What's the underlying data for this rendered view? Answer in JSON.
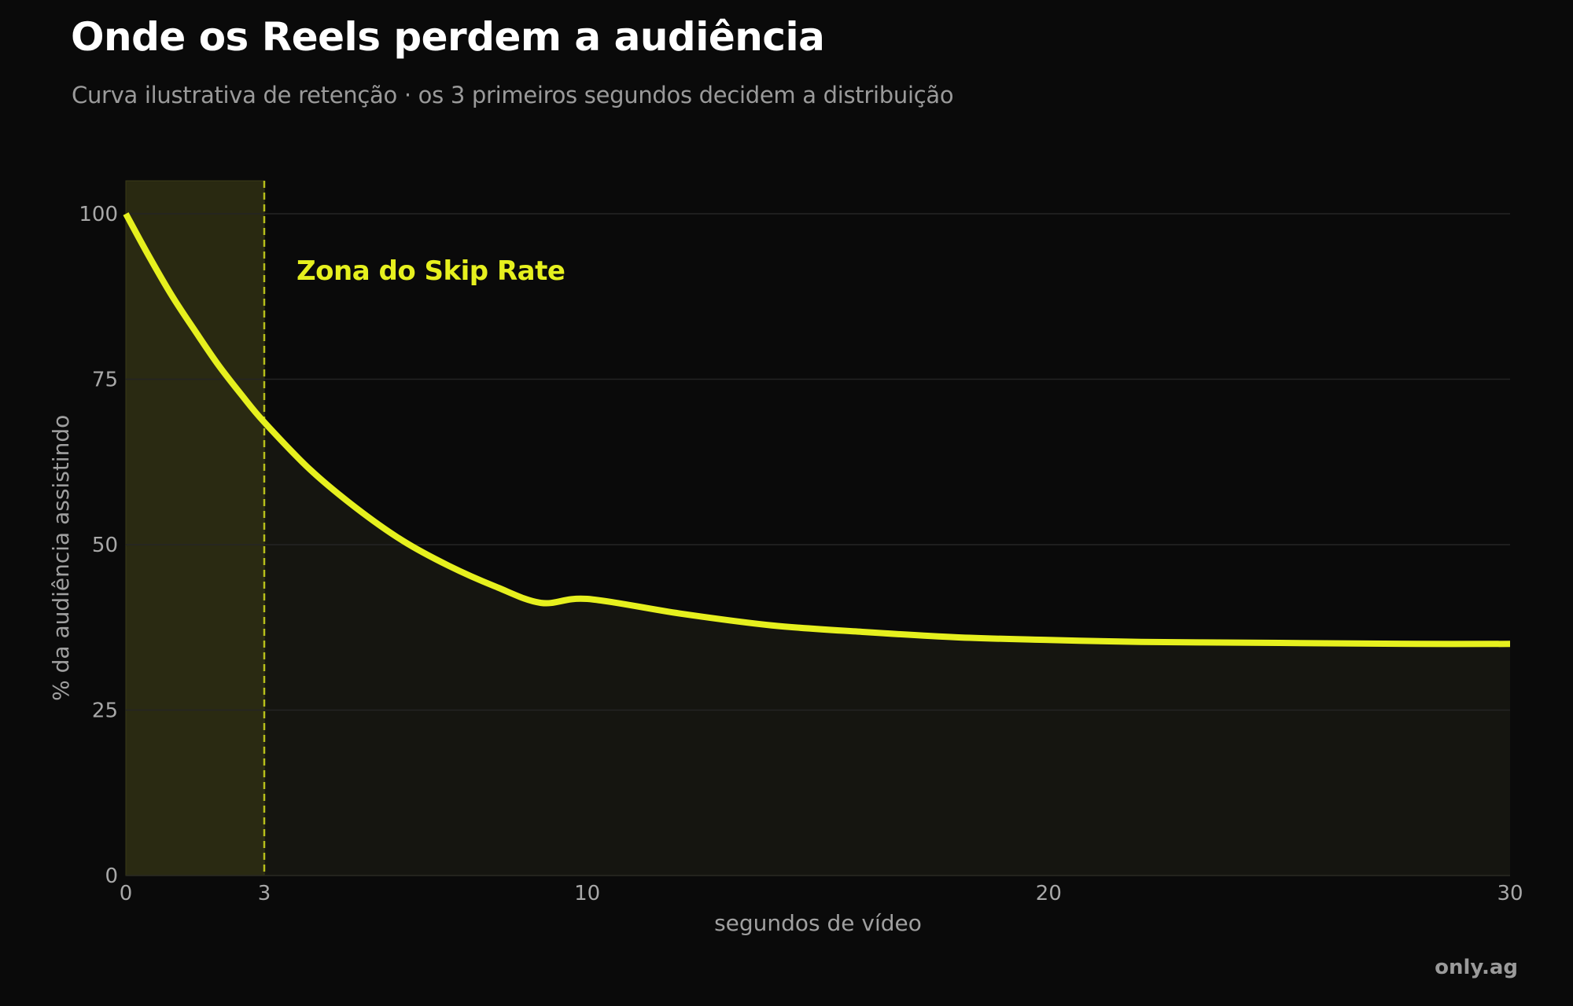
{
  "title": "Onde os Reels perdem a audiência",
  "subtitle": "Curva ilustrativa de retenção · os 3 primeiros segundos decidem a distribuição",
  "brand": "only.ag",
  "colors": {
    "background": "#0a0a0a",
    "accent": "#e6f01e",
    "grid": "#242424",
    "zone_fill": "#2c2d12",
    "area_fill": "#151510"
  },
  "chart_data": {
    "type": "area",
    "title": "Onde os Reels perdem a audiência",
    "subtitle": "Curva ilustrativa de retenção · os 3 primeiros segundos decidem a distribuição",
    "xlabel": "segundos de vídeo",
    "ylabel": "% da audiência assistindo",
    "xlim": [
      0,
      30
    ],
    "ylim": [
      0,
      105
    ],
    "x_ticks": [
      0,
      3,
      10,
      20,
      30
    ],
    "y_ticks": [
      0,
      25,
      50,
      75,
      100
    ],
    "grid": "horizontal",
    "series": [
      {
        "x": [
          0,
          0.5,
          1,
          1.5,
          2,
          2.5,
          3,
          4,
          5,
          6,
          7,
          8,
          9,
          10,
          12,
          14,
          16,
          18,
          20,
          22,
          24,
          26,
          28,
          30
        ],
        "values": [
          100,
          93.6,
          87.6,
          82.3,
          77.2,
          72.7,
          68.5,
          61.3,
          55.5,
          50.6,
          46.8,
          43.7,
          41.2,
          41.8,
          39.6,
          37.8,
          36.8,
          36.0,
          35.6,
          35.3,
          35.2,
          35.1,
          35.0,
          35.0
        ]
      }
    ],
    "shaded_region": {
      "x_start": 0,
      "x_end": 3,
      "label": "Zona do Skip Rate"
    }
  }
}
